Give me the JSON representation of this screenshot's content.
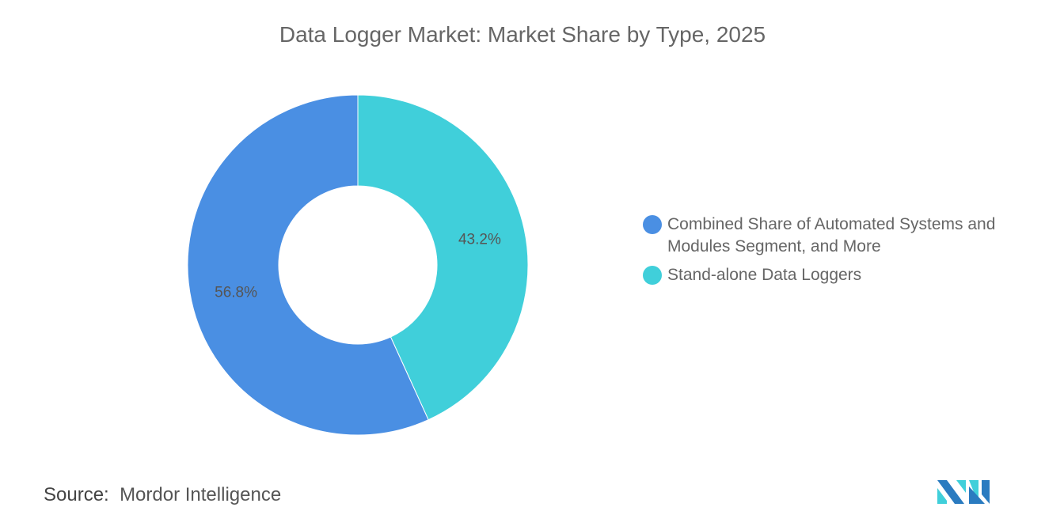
{
  "title": "Data Logger Market: Market Share by Type, 2025",
  "source_label": "Source:",
  "source_value": "Mordor Intelligence",
  "logo_text": "Mordor Intelligence",
  "chart_data": {
    "type": "pie",
    "variant": "donut",
    "title": "Data Logger Market: Market Share by Type, 2025",
    "categories": [
      "Stand-alone Data Loggers",
      "Combined Share of Automated Systems and Modules Segment, and More"
    ],
    "values": [
      43.2,
      56.8
    ],
    "labels": [
      "43.2%",
      "56.8%"
    ],
    "colors": [
      "#40CFDA",
      "#4A8FE3"
    ],
    "legend_placement": "right",
    "legend": [
      {
        "label": "Combined Share of Automated Systems and Modules Segment, and More",
        "color": "#4A8FE3"
      },
      {
        "label": "Stand-alone Data Loggers",
        "color": "#40CFDA"
      }
    ]
  }
}
